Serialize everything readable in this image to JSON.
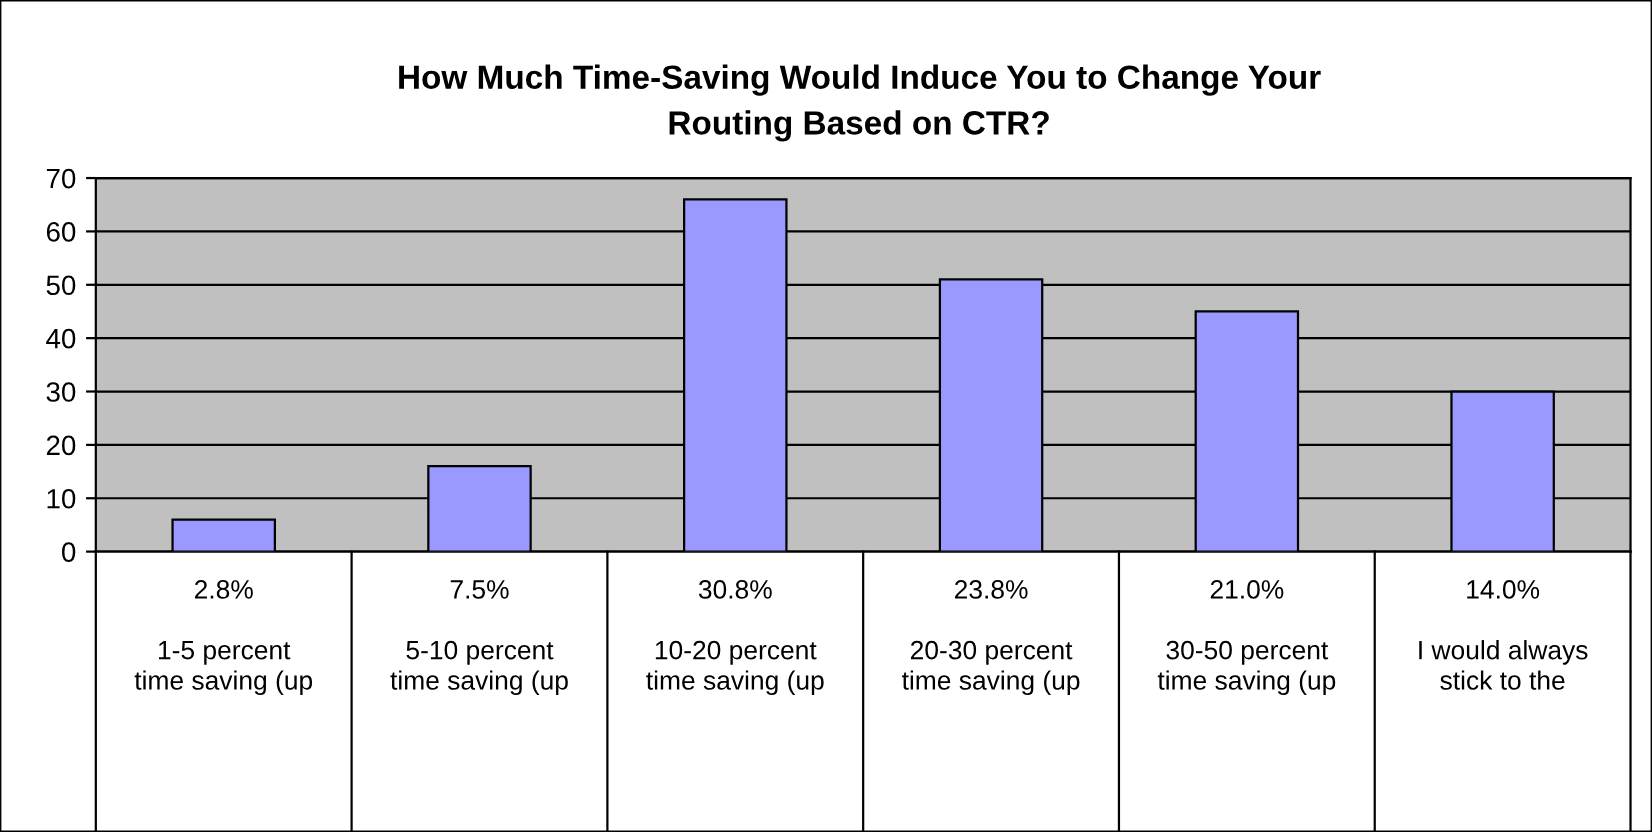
{
  "chart_data": {
    "type": "bar",
    "title": "How Much Time-Saving Would Induce You to Change Your\nRouting Based on CTR?",
    "categories": [
      "2.8%\n\n1-5 percent\ntime saving (up",
      "7.5%\n\n5-10 percent\ntime saving (up",
      "30.8%\n\n10-20 percent\ntime saving (up",
      "23.8%\n\n20-30 percent\ntime saving (up",
      "21.0%\n\n30-50 percent\ntime saving (up",
      "14.0%\n\nI would always\nstick to the"
    ],
    "values": [
      6,
      16,
      66,
      51,
      45,
      30
    ],
    "color": "#9999ff",
    "ylim": [
      0,
      70
    ],
    "yticks": [
      0,
      10,
      20,
      30,
      40,
      50,
      60,
      70
    ],
    "grid": "y",
    "legend": false
  }
}
